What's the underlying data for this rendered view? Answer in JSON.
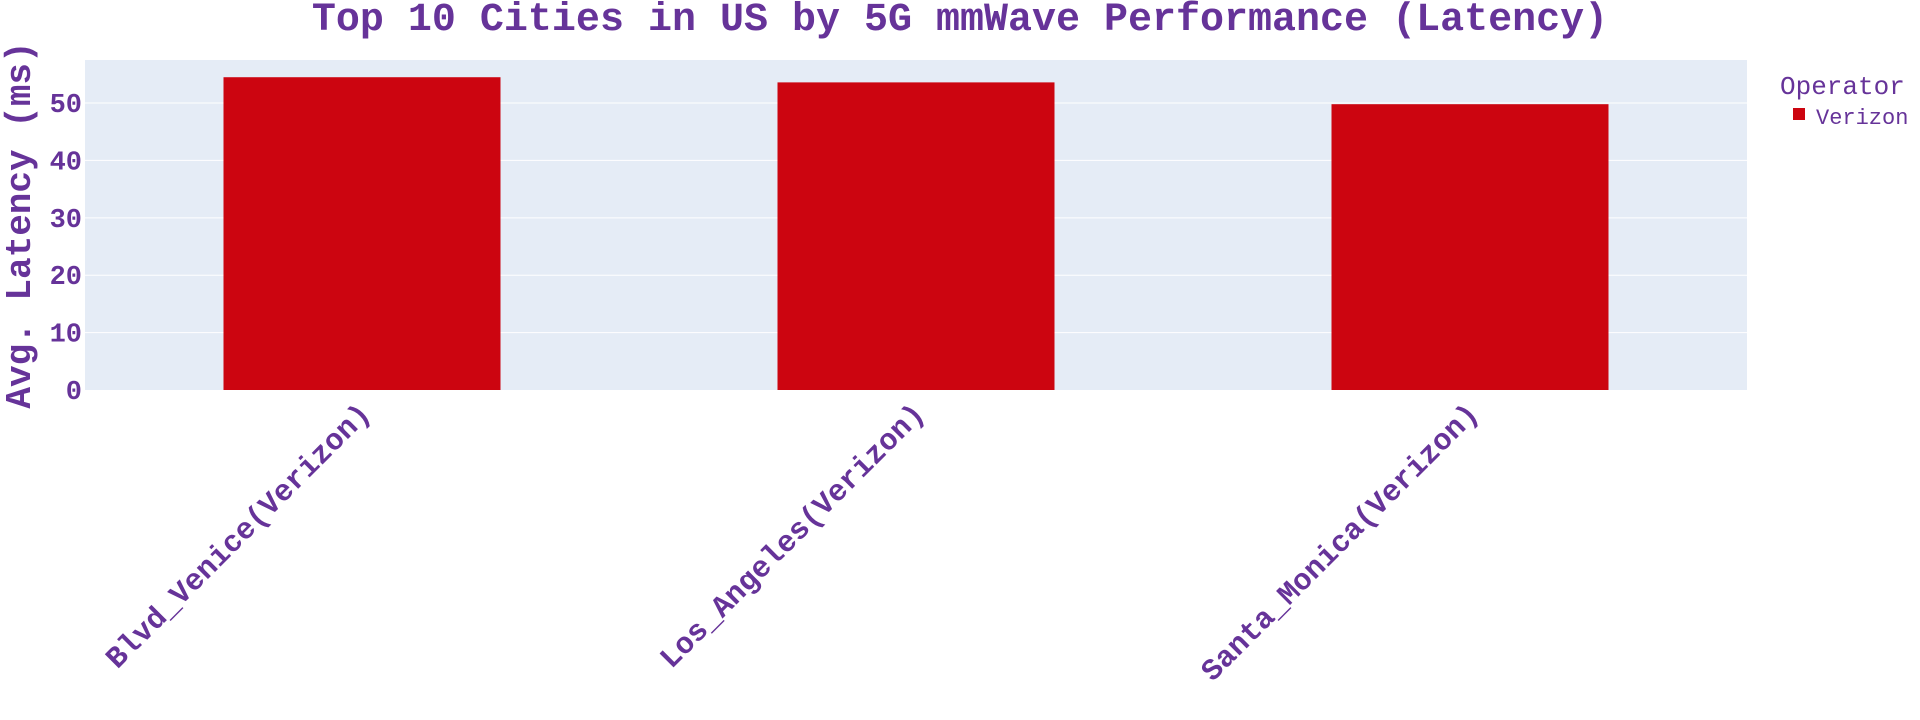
{
  "chart_data": {
    "type": "bar",
    "title": "Top 10 Cities in US by 5G mmWave Performance (Latency)",
    "xlabel": "",
    "ylabel": "Avg. Latency (ms)",
    "categories": [
      "Blvd_Venice(Verizon)",
      "Los_Angeles(Verizon)",
      "Santa_Monica(Verizon)"
    ],
    "series": [
      {
        "name": "Verizon",
        "values": [
          54.5,
          53.6,
          49.8
        ],
        "color": "#cc0510"
      }
    ],
    "ylim": [
      0,
      57.5
    ],
    "yticks": [
      "0",
      "10",
      "20",
      "30",
      "40",
      "50"
    ],
    "legend": {
      "title": "Operator",
      "placement": "top-right"
    },
    "grid": true,
    "colors": {
      "text": "#663399",
      "plot_background": "#e5ecf6",
      "gridline": "#ffffff"
    }
  }
}
